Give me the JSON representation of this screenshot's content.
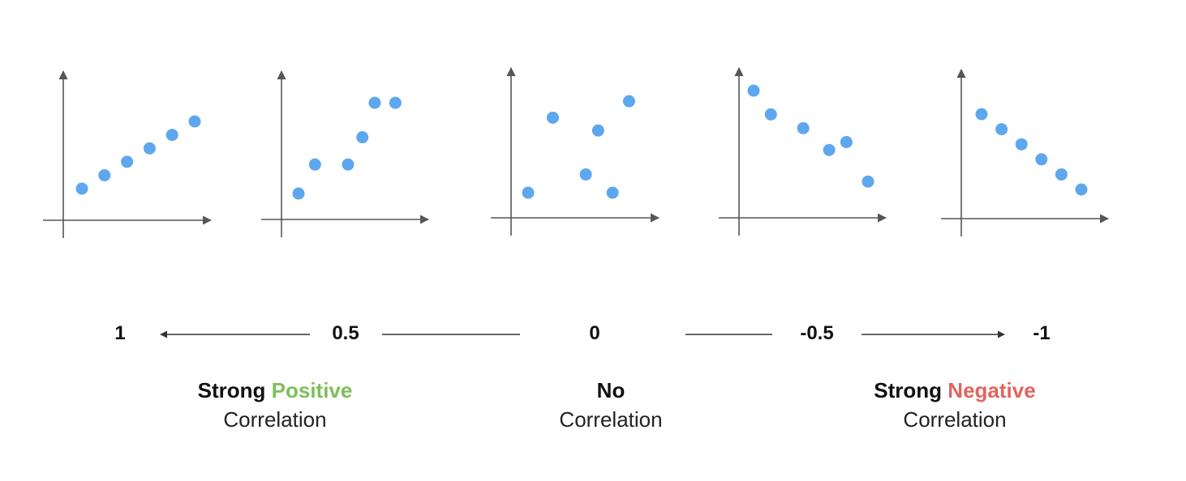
{
  "colors": {
    "axis": "#55565b",
    "point": "#5ea7ee",
    "scale_line": "#333333",
    "positive": "#7dbf5b",
    "negative": "#e2645e"
  },
  "icons": {
    "arrow": "arrowhead"
  },
  "scale": {
    "labels": [
      "1",
      "0.5",
      "0",
      "-0.5",
      "-1"
    ]
  },
  "captions": {
    "positive": {
      "word1": "Strong",
      "word2": "Positive",
      "line2": "Correlation"
    },
    "none": {
      "word1": "No",
      "line2": "Correlation"
    },
    "negative": {
      "word1": "Strong",
      "word2": "Negative",
      "line2": "Correlation"
    }
  },
  "chart_data": [
    {
      "type": "scatter",
      "correlation": 1,
      "x": [
        1,
        2,
        3,
        4,
        5,
        6
      ],
      "y": [
        1,
        2,
        3,
        4,
        5,
        6
      ]
    },
    {
      "type": "scatter",
      "correlation": 0.5,
      "x": [
        1,
        1.8,
        3.4,
        4.1,
        4.7,
        5.7
      ],
      "y": [
        1,
        2.6,
        2.6,
        4.1,
        6,
        6
      ]
    },
    {
      "type": "scatter",
      "correlation": 0,
      "x": [
        1,
        2.2,
        3.8,
        4.4,
        5.1,
        5.9
      ],
      "y": [
        1,
        5.1,
        2,
        4.4,
        1,
        6
      ]
    },
    {
      "type": "scatter",
      "correlation": -0.5,
      "x": [
        1,
        1.8,
        3.3,
        4.5,
        5.3,
        6.3
      ],
      "y": [
        6,
        4.8,
        4.1,
        3,
        3.4,
        1.4
      ]
    },
    {
      "type": "scatter",
      "correlation": -1,
      "x": [
        1,
        2,
        3,
        4,
        5,
        6
      ],
      "y": [
        6,
        5,
        4,
        3,
        2,
        1
      ]
    }
  ]
}
